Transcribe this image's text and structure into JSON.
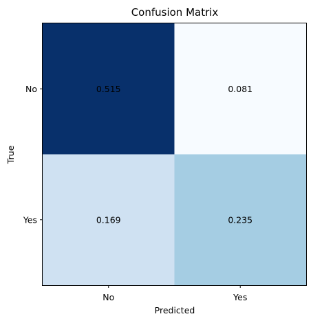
{
  "chart_data": {
    "type": "heatmap",
    "title": "Confusion Matrix",
    "xlabel": "Predicted",
    "ylabel": "True",
    "x_categories": [
      "No",
      "Yes"
    ],
    "y_categories": [
      "No",
      "Yes"
    ],
    "values": [
      [
        0.515,
        0.081
      ],
      [
        0.169,
        0.235
      ]
    ],
    "value_labels": [
      [
        "0.515",
        "0.081"
      ],
      [
        "0.169",
        "0.235"
      ]
    ],
    "colormap": "Blues",
    "colors": [
      [
        "#08306b",
        "#f7fbff"
      ],
      [
        "#cfe1f2",
        "#a5cde3"
      ]
    ],
    "grid": false,
    "legend": "none"
  }
}
